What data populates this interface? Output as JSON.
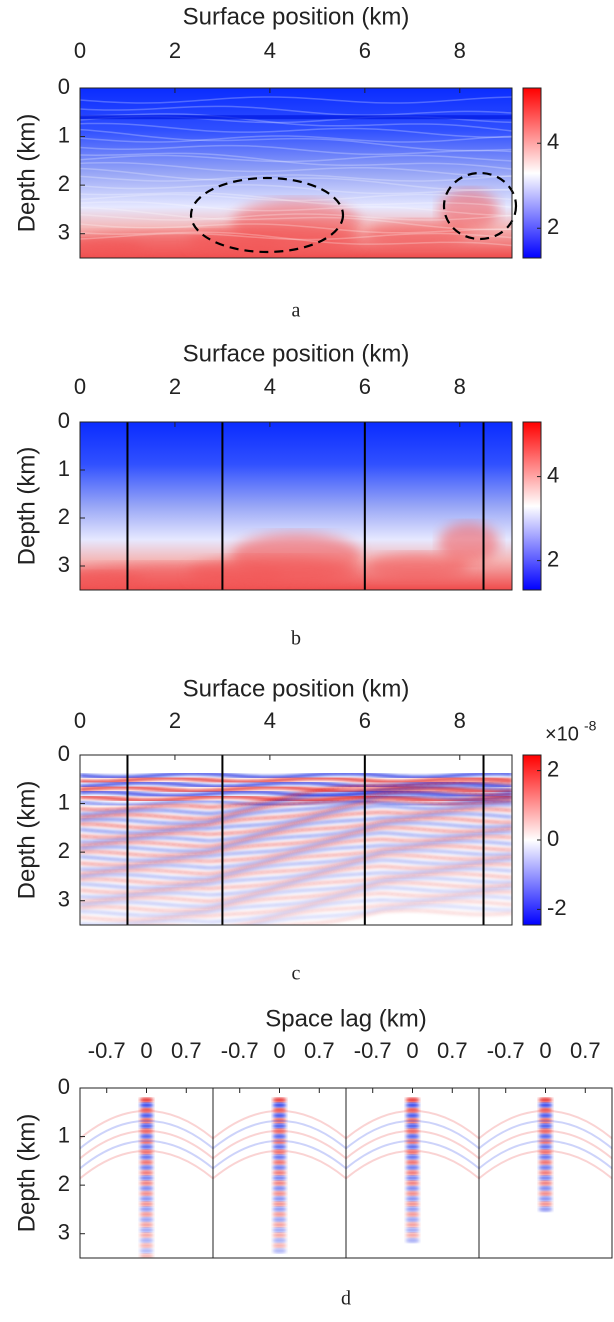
{
  "chart_data": [
    {
      "type": "heatmap",
      "title": "Surface position (km)",
      "ylabel": "Depth (km)",
      "caption": "a",
      "xlim": [
        0,
        9.1
      ],
      "xticks": [
        0,
        2,
        4,
        6,
        8
      ],
      "ylim": [
        0,
        3.5
      ],
      "yticks": [
        0,
        1,
        2,
        3
      ],
      "clim": [
        1.3,
        5.3
      ],
      "cticks": [
        2,
        4
      ],
      "colormap": [
        "#0000ff",
        "#ffffff",
        "#ff0000"
      ]
    },
    {
      "type": "heatmap",
      "title": "Surface position (km)",
      "ylabel": "Depth (km)",
      "caption": "b",
      "xlim": [
        0,
        9.1
      ],
      "xticks": [
        0,
        2,
        4,
        6,
        8
      ],
      "ylim": [
        0,
        3.5
      ],
      "yticks": [
        0,
        1,
        2,
        3
      ],
      "clim": [
        1.3,
        5.3
      ],
      "cticks": [
        2,
        4
      ],
      "colormap": [
        "#0000ff",
        "#ffffff",
        "#ff0000"
      ],
      "vlines": [
        1,
        3,
        6,
        8.5
      ]
    },
    {
      "type": "heatmap",
      "title": "Surface position (km)",
      "ylabel": "Depth (km)",
      "caption": "c",
      "xlim": [
        0,
        9.1
      ],
      "xticks": [
        0,
        2,
        4,
        6,
        8
      ],
      "ylim": [
        0,
        3.5
      ],
      "yticks": [
        0,
        1,
        2,
        3
      ],
      "clim": [
        -2.45,
        2.45
      ],
      "cticks": [
        -2,
        0,
        2
      ],
      "colormap": [
        "#0000ff",
        "#ffffff",
        "#ff0000"
      ],
      "cscale_label": "×10",
      "cscale_exponent": "-8",
      "vlines": [
        1,
        3,
        6,
        8.5
      ]
    },
    {
      "type": "gathers",
      "title": "Space lag (km)",
      "ylabel": "Depth (km)",
      "caption": "d",
      "ylim": [
        0,
        3.5
      ],
      "yticks": [
        0,
        1,
        2,
        3
      ],
      "subplots": [
        {
          "xlim": [
            -1.17,
            1.17
          ],
          "xticks": [
            -0.7,
            0,
            0.7
          ]
        },
        {
          "xlim": [
            -1.17,
            1.17
          ],
          "xticks": [
            -0.7,
            0,
            0.7
          ]
        },
        {
          "xlim": [
            -1.17,
            1.17
          ],
          "xticks": [
            -0.7,
            0,
            0.7
          ]
        },
        {
          "xlim": [
            -1.17,
            1.17
          ],
          "xticks": [
            -0.7,
            0,
            0.7
          ]
        }
      ]
    }
  ]
}
